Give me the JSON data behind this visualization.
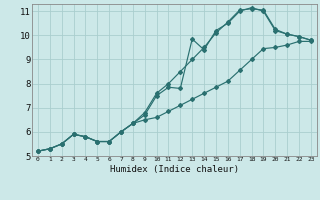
{
  "xlabel": "Humidex (Indice chaleur)",
  "xlim": [
    -0.5,
    23.5
  ],
  "ylim": [
    5,
    11.3
  ],
  "yticks": [
    5,
    6,
    7,
    8,
    9,
    10,
    11
  ],
  "xticks": [
    0,
    1,
    2,
    3,
    4,
    5,
    6,
    7,
    8,
    9,
    10,
    11,
    12,
    13,
    14,
    15,
    16,
    17,
    18,
    19,
    20,
    21,
    22,
    23
  ],
  "background_color": "#cce8e8",
  "grid_color": "#aacece",
  "line_color": "#2a7070",
  "line1_y": [
    5.2,
    5.3,
    5.5,
    5.9,
    5.8,
    5.6,
    5.6,
    6.0,
    6.35,
    6.5,
    6.6,
    6.85,
    7.1,
    7.35,
    7.6,
    7.85,
    8.1,
    8.55,
    9.0,
    9.45,
    9.5,
    9.6,
    9.75,
    9.75
  ],
  "line2_y": [
    5.2,
    5.3,
    5.5,
    5.9,
    5.8,
    5.6,
    5.6,
    6.0,
    6.35,
    6.7,
    7.5,
    7.85,
    7.8,
    9.85,
    9.4,
    10.2,
    10.5,
    11.0,
    11.15,
    11.0,
    10.2,
    10.05,
    9.95,
    9.8
  ],
  "line3_y": [
    5.2,
    5.3,
    5.5,
    5.9,
    5.8,
    5.6,
    5.6,
    6.0,
    6.35,
    6.8,
    7.6,
    8.0,
    8.5,
    9.0,
    9.5,
    10.1,
    10.55,
    11.05,
    11.1,
    11.05,
    10.25,
    10.05,
    9.95,
    9.8
  ]
}
